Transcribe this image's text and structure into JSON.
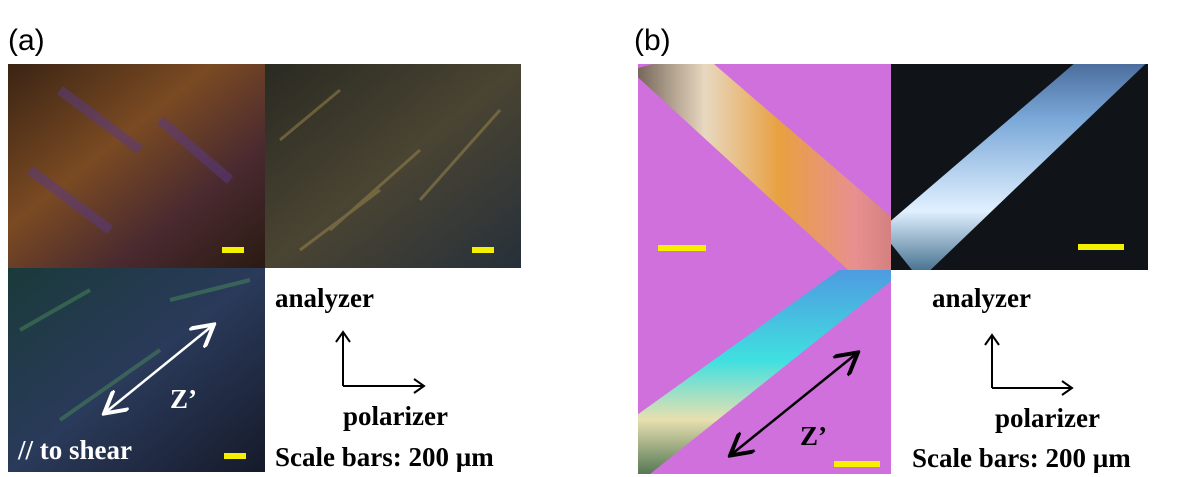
{
  "panels": [
    {
      "label": "(a)",
      "axis_up": "analyzer",
      "axis_right": "polarizer",
      "scale_note": "Scale bars: 200 µm",
      "direction": "Z’",
      "direction_note": "// to shear"
    },
    {
      "label": "(b)",
      "axis_up": "analyzer",
      "axis_right": "polarizer",
      "scale_note": "Scale bars: 200 µm",
      "direction": "Z’"
    }
  ]
}
